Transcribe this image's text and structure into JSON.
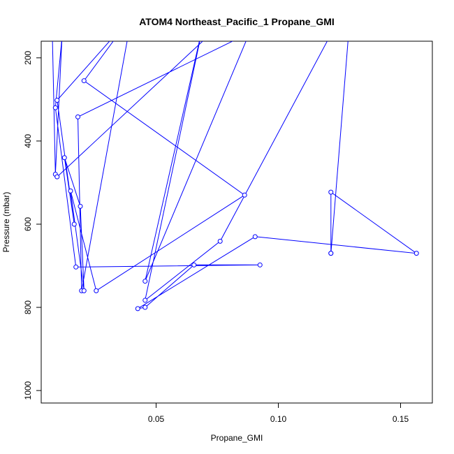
{
  "chart_data": {
    "type": "line",
    "title": "ATOM4 Northeast_Pacific_1 Propane_GMI",
    "xlabel": "Propane_GMI",
    "ylabel": "Pressure (mbar)",
    "xlim": [
      0.003,
      0.163
    ],
    "ylim": [
      1030,
      160
    ],
    "y_reversed": true,
    "xticks": [
      0.05,
      0.1,
      0.15
    ],
    "xtick_labels": [
      "0.05",
      "0.10",
      "0.15"
    ],
    "yticks": [
      200,
      400,
      600,
      800,
      1000
    ],
    "ytick_labels": [
      "200",
      "400",
      "600",
      "800",
      "1000"
    ],
    "series_color": "#0000ff",
    "marker": "open-circle",
    "points": [
      {
        "x": 0.0072,
        "y": 50
      },
      {
        "x": 0.0088,
        "y": 480
      },
      {
        "x": 0.0115,
        "y": 150
      },
      {
        "x": 0.0088,
        "y": 320
      },
      {
        "x": 0.0172,
        "y": 703
      },
      {
        "x": 0.0925,
        "y": 698
      },
      {
        "x": 0.0655,
        "y": 698
      },
      {
        "x": 0.0455,
        "y": 800
      },
      {
        "x": 0.0425,
        "y": 803
      },
      {
        "x": 0.0905,
        "y": 630
      },
      {
        "x": 0.1565,
        "y": 670
      },
      {
        "x": 0.1215,
        "y": 523
      },
      {
        "x": 0.1215,
        "y": 670
      },
      {
        "x": 0.1215,
        "y": 670
      },
      {
        "x": 0.13,
        "y": 50
      },
      {
        "x": 0.0762,
        "y": 641
      },
      {
        "x": 0.0455,
        "y": 783
      },
      {
        "x": 0.07,
        "y": 100
      },
      {
        "x": 0.0455,
        "y": 737
      },
      {
        "x": 0.0882,
        "y": 140
      },
      {
        "x": 0.018,
        "y": 342
      },
      {
        "x": 0.0195,
        "y": 760
      },
      {
        "x": 0.04,
        "y": 100
      },
      {
        "x": 0.0205,
        "y": 255
      },
      {
        "x": 0.0862,
        "y": 530
      },
      {
        "x": 0.0255,
        "y": 760
      },
      {
        "x": 0.015,
        "y": 520
      },
      {
        "x": 0.0205,
        "y": 760
      },
      {
        "x": 0.019,
        "y": 557
      },
      {
        "x": 0.0125,
        "y": 440
      },
      {
        "x": 0.0165,
        "y": 600
      },
      {
        "x": 0.0095,
        "y": 302
      },
      {
        "x": 0.04,
        "y": 100
      },
      {
        "x": 0.08,
        "y": 100
      },
      {
        "x": 0.0095,
        "y": 486
      }
    ]
  }
}
